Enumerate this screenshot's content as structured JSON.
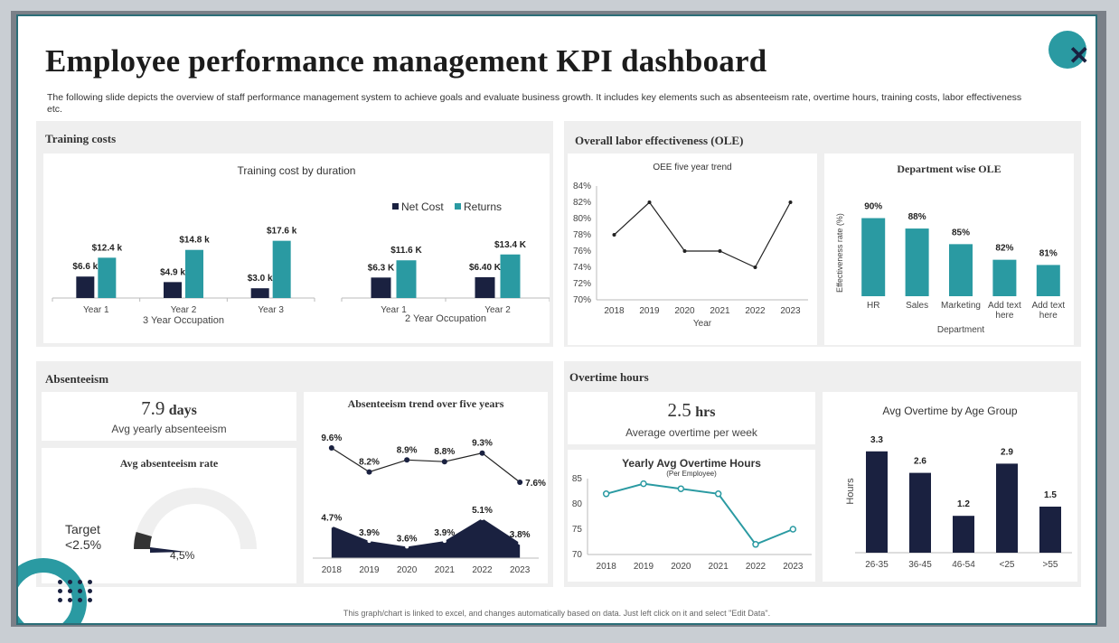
{
  "header": {
    "title": "Employee performance management KPI dashboard",
    "subtitle": "The following slide depicts the overview of staff performance management system to achieve goals and evaluate business growth. It includes key elements such as absenteeism rate, overtime hours, training costs, labor effectiveness etc."
  },
  "footer": "This graph/chart is linked to excel, and changes automatically based on data. Just left click on it and select \"Edit Data\".",
  "training": {
    "panel_title": "Training costs",
    "chart_title": "Training  cost by duration",
    "legend": [
      "Net Cost",
      "Returns"
    ],
    "group1_label": "3 Year Occupation",
    "group2_label": "2 Year Occupation"
  },
  "ole": {
    "panel_title": "Overall labor effectiveness (OLE)",
    "trend_title": "OEE  five year trend",
    "trend_xlabel": "Year",
    "dept_title": "Department wise OLE",
    "dept_ylabel": "Effectiveness rate (%)",
    "dept_xlabel": "Department"
  },
  "absenteeism": {
    "panel_title": "Absenteeism",
    "kpi_value": "7.9",
    "kpi_unit": "days",
    "kpi_label": "Avg yearly absenteeism",
    "gauge_title": "Avg absenteeism rate",
    "target_label": "Target",
    "target_value": "<2.5%",
    "gauge_value": "4,5%",
    "gauge_fraction": 0.09,
    "trend_title": "Absenteeism trend over five years"
  },
  "overtime": {
    "panel_title": "Overtime hours",
    "kpi_value": "2.5",
    "kpi_unit": "hrs",
    "kpi_label": "Average  overtime  per week",
    "yearly_title": "Yearly Avg Overtime Hours",
    "yearly_subtitle": "(Per Employee)",
    "age_title": "Avg  Overtime  by Age Group",
    "age_ylabel": "Hours"
  },
  "colors": {
    "dark": "#1a2140",
    "teal": "#2a9aa2",
    "panel": "#efefef",
    "line": "#333333"
  },
  "icons": [
    "close-icon",
    "dots-decoration-icon"
  ],
  "chart_data": [
    {
      "id": "training-3yr",
      "type": "bar",
      "title": "Training  cost by duration",
      "xlabel": "3 Year Occupation",
      "categories": [
        "Year 1",
        "Year 2",
        "Year 3"
      ],
      "series": [
        {
          "name": "Net Cost",
          "values": [
            6.6,
            4.9,
            3.0
          ]
        },
        {
          "name": "Returns",
          "values": [
            12.4,
            14.8,
            17.6
          ]
        }
      ],
      "value_labels": [
        [
          "$6.6 k",
          "$4.9 k",
          "$3.0 k"
        ],
        [
          "$12.4 k",
          "$14.8 k",
          "$17.6 k"
        ]
      ],
      "ylim": [
        0,
        20
      ]
    },
    {
      "id": "training-2yr",
      "type": "bar",
      "xlabel": "2 Year Occupation",
      "categories": [
        "Year 1",
        "Year 2"
      ],
      "series": [
        {
          "name": "Net Cost",
          "values": [
            6.3,
            6.4
          ]
        },
        {
          "name": "Returns",
          "values": [
            11.6,
            13.4
          ]
        }
      ],
      "value_labels": [
        [
          "$6.3 K",
          "$6.40 K"
        ],
        [
          "$11.6 K",
          "$13.4 K"
        ]
      ],
      "ylim": [
        0,
        20
      ]
    },
    {
      "id": "oee-trend",
      "type": "line",
      "title": "OEE  five year trend",
      "xlabel": "Year",
      "x": [
        "2018",
        "2019",
        "2020",
        "2021",
        "2022",
        "2023"
      ],
      "values": [
        78,
        82,
        76,
        76,
        74,
        82
      ],
      "yticks": [
        "70%",
        "72%",
        "74%",
        "76%",
        "78%",
        "80%",
        "82%",
        "84%"
      ],
      "ylim": [
        70,
        84
      ]
    },
    {
      "id": "dept-ole",
      "type": "bar",
      "title": "Department wise OLE",
      "ylabel": "Effectiveness rate (%)",
      "xlabel": "Department",
      "categories": [
        "HR",
        "Sales",
        "Marketing",
        "Add text here",
        "Add text here"
      ],
      "values": [
        90,
        88,
        85,
        82,
        81
      ],
      "value_labels": [
        "90%",
        "88%",
        "85%",
        "82%",
        "81%"
      ],
      "ylim": [
        75,
        92
      ]
    },
    {
      "id": "absent-trend",
      "type": "line",
      "title": "Absenteeism trend over five years",
      "x": [
        "2018",
        "2019",
        "2020",
        "2021",
        "2022",
        "2023"
      ],
      "series": [
        {
          "values": [
            9.6,
            8.2,
            8.9,
            8.8,
            9.3,
            7.6
          ],
          "labels": [
            "9.6%",
            "8.2%",
            "8.9%",
            "8.8%",
            "9.3%",
            "7.6%"
          ]
        },
        {
          "values": [
            4.7,
            3.9,
            3.6,
            3.9,
            5.1,
            3.8
          ],
          "labels": [
            "4.7%",
            "3.9%",
            "3.6%",
            "3.9%",
            "5.1%",
            "3.8%"
          ]
        }
      ]
    },
    {
      "id": "yearly-overtime",
      "type": "line",
      "title": "Yearly Avg Overtime Hours",
      "x": [
        "2018",
        "2019",
        "2020",
        "2021",
        "2022",
        "2023"
      ],
      "values": [
        82,
        84,
        83,
        82,
        72,
        75
      ],
      "yticks": [
        "70",
        "75",
        "80",
        "85"
      ],
      "ylim": [
        70,
        85
      ]
    },
    {
      "id": "age-overtime",
      "type": "bar",
      "title": "Avg  Overtime  by Age Group",
      "ylabel": "Hours",
      "categories": [
        "26-35",
        "36-45",
        "46-54",
        "<25",
        ">55"
      ],
      "values": [
        3.3,
        2.6,
        1.2,
        2.9,
        1.5
      ],
      "value_labels": [
        "3.3",
        "2.6",
        "1.2",
        "2.9",
        "1.5"
      ],
      "ylim": [
        0,
        3.6
      ]
    }
  ]
}
